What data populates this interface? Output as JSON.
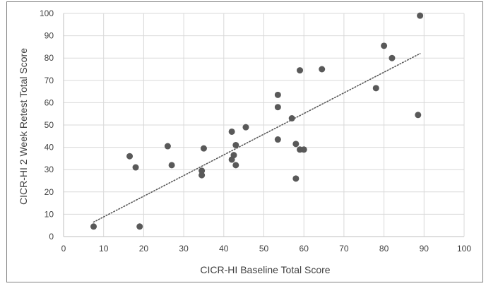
{
  "chart_data": {
    "type": "scatter",
    "title": "",
    "xlabel": "CICR-HI Baseline Total Score",
    "ylabel": "CICR-HI 2 Week Retest Total Score",
    "xlim": [
      0,
      100
    ],
    "ylim": [
      0,
      100
    ],
    "x_ticks": [
      0,
      10,
      20,
      30,
      40,
      50,
      60,
      70,
      80,
      90,
      100
    ],
    "y_ticks": [
      0,
      10,
      20,
      30,
      40,
      50,
      60,
      70,
      80,
      90,
      100
    ],
    "grid": true,
    "trendline": {
      "style": "dotted",
      "type": "linear",
      "from": [
        7.5,
        6.5
      ],
      "to": [
        89,
        82
      ]
    },
    "colors": {
      "marker": "#595959",
      "grid": "#d9d9d9",
      "trendline": "#595959"
    },
    "points": [
      {
        "x": 7.5,
        "y": 4.5
      },
      {
        "x": 16.5,
        "y": 36
      },
      {
        "x": 18,
        "y": 31
      },
      {
        "x": 19,
        "y": 4.5
      },
      {
        "x": 26,
        "y": 40.5
      },
      {
        "x": 27,
        "y": 32
      },
      {
        "x": 34.5,
        "y": 27.5
      },
      {
        "x": 34.5,
        "y": 29.5
      },
      {
        "x": 35,
        "y": 39.5
      },
      {
        "x": 42,
        "y": 47
      },
      {
        "x": 42,
        "y": 34.5
      },
      {
        "x": 42.5,
        "y": 36.5
      },
      {
        "x": 43,
        "y": 41
      },
      {
        "x": 43,
        "y": 32
      },
      {
        "x": 45.5,
        "y": 49
      },
      {
        "x": 53.5,
        "y": 63.5
      },
      {
        "x": 53.5,
        "y": 58
      },
      {
        "x": 53.5,
        "y": 43.5
      },
      {
        "x": 57,
        "y": 53
      },
      {
        "x": 58,
        "y": 41.5
      },
      {
        "x": 58,
        "y": 26
      },
      {
        "x": 59,
        "y": 74.5
      },
      {
        "x": 59,
        "y": 39
      },
      {
        "x": 60,
        "y": 39
      },
      {
        "x": 64.5,
        "y": 75
      },
      {
        "x": 78,
        "y": 66.5
      },
      {
        "x": 80,
        "y": 85.5
      },
      {
        "x": 82,
        "y": 80
      },
      {
        "x": 88.5,
        "y": 54.5
      },
      {
        "x": 89,
        "y": 99
      }
    ]
  }
}
